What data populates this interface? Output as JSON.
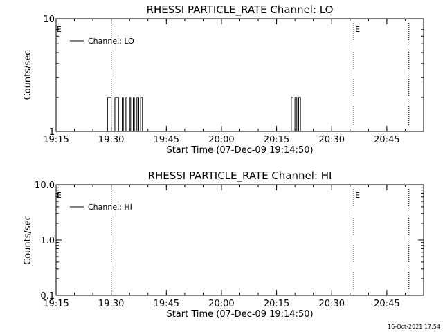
{
  "footer": {
    "timestamp": "16-Oct-2021 17:54"
  },
  "chart_data": [
    {
      "type": "line",
      "title": "RHESSI PARTICLE_RATE Channel: LO",
      "xlabel": "Start Time (07-Dec-09 19:14:50)",
      "ylabel": "Counts/sec",
      "yscale": "log",
      "xlim": [
        "19:15",
        "20:55"
      ],
      "ylim": [
        1,
        10
      ],
      "x_ticks": [
        "19:15",
        "19:30",
        "19:45",
        "20:00",
        "20:15",
        "20:30",
        "20:45"
      ],
      "y_ticks": [
        "1",
        "10"
      ],
      "legend": {
        "label": "Channel: LO",
        "position": "top-left"
      },
      "markers": {
        "label": "E",
        "lines": [
          "19:30",
          "20:36",
          "20:51"
        ]
      },
      "series": [
        {
          "points": [
            [
              "19:15",
              1
            ],
            [
              "19:29",
              1
            ],
            [
              "19:29",
              2
            ],
            [
              "19:30",
              2
            ],
            [
              "19:30",
              1
            ],
            [
              "19:31",
              1
            ],
            [
              "19:31",
              2
            ],
            [
              "19:32",
              2
            ],
            [
              "19:32",
              1
            ],
            [
              "19:33",
              1
            ],
            [
              "19:33",
              2
            ],
            [
              "19:33.3",
              2
            ],
            [
              "19:33.3",
              1
            ],
            [
              "19:34",
              1
            ],
            [
              "19:34",
              2
            ],
            [
              "19:34.3",
              2
            ],
            [
              "19:34.3",
              1
            ],
            [
              "19:35",
              1
            ],
            [
              "19:35",
              2
            ],
            [
              "19:35.3",
              2
            ],
            [
              "19:35.3",
              1
            ],
            [
              "19:36",
              1
            ],
            [
              "19:36",
              2
            ],
            [
              "19:36.3",
              2
            ],
            [
              "19:36.3",
              1
            ],
            [
              "19:37",
              1
            ],
            [
              "19:37",
              2
            ],
            [
              "19:37.5",
              2
            ],
            [
              "19:37.5",
              1
            ],
            [
              "19:38",
              1
            ],
            [
              "19:38",
              2
            ],
            [
              "19:38.5",
              2
            ],
            [
              "19:38.5",
              1
            ],
            [
              "20:19",
              1
            ],
            [
              "20:19",
              2
            ],
            [
              "20:19.5",
              2
            ],
            [
              "20:19.5",
              1
            ],
            [
              "20:20",
              1
            ],
            [
              "20:20",
              2
            ],
            [
              "20:20.5",
              2
            ],
            [
              "20:20.5",
              1
            ],
            [
              "20:21",
              1
            ],
            [
              "20:21",
              2
            ],
            [
              "20:21.5",
              2
            ],
            [
              "20:21.5",
              1
            ],
            [
              "20:55",
              1
            ]
          ]
        }
      ]
    },
    {
      "type": "line",
      "title": "RHESSI PARTICLE_RATE Channel: HI",
      "xlabel": "Start Time (07-Dec-09 19:14:50)",
      "ylabel": "Counts/sec",
      "yscale": "log",
      "xlim": [
        "19:15",
        "20:55"
      ],
      "ylim": [
        0.1,
        10
      ],
      "x_ticks": [
        "19:15",
        "19:30",
        "19:45",
        "20:00",
        "20:15",
        "20:30",
        "20:45"
      ],
      "y_ticks": [
        "0.1",
        "1.0",
        "10.0"
      ],
      "legend": {
        "label": "Channel: HI",
        "position": "top-left"
      },
      "markers": {
        "label": "E",
        "lines": [
          "19:30",
          "20:36",
          "20:51"
        ]
      },
      "series": [
        {
          "points": []
        }
      ]
    }
  ]
}
